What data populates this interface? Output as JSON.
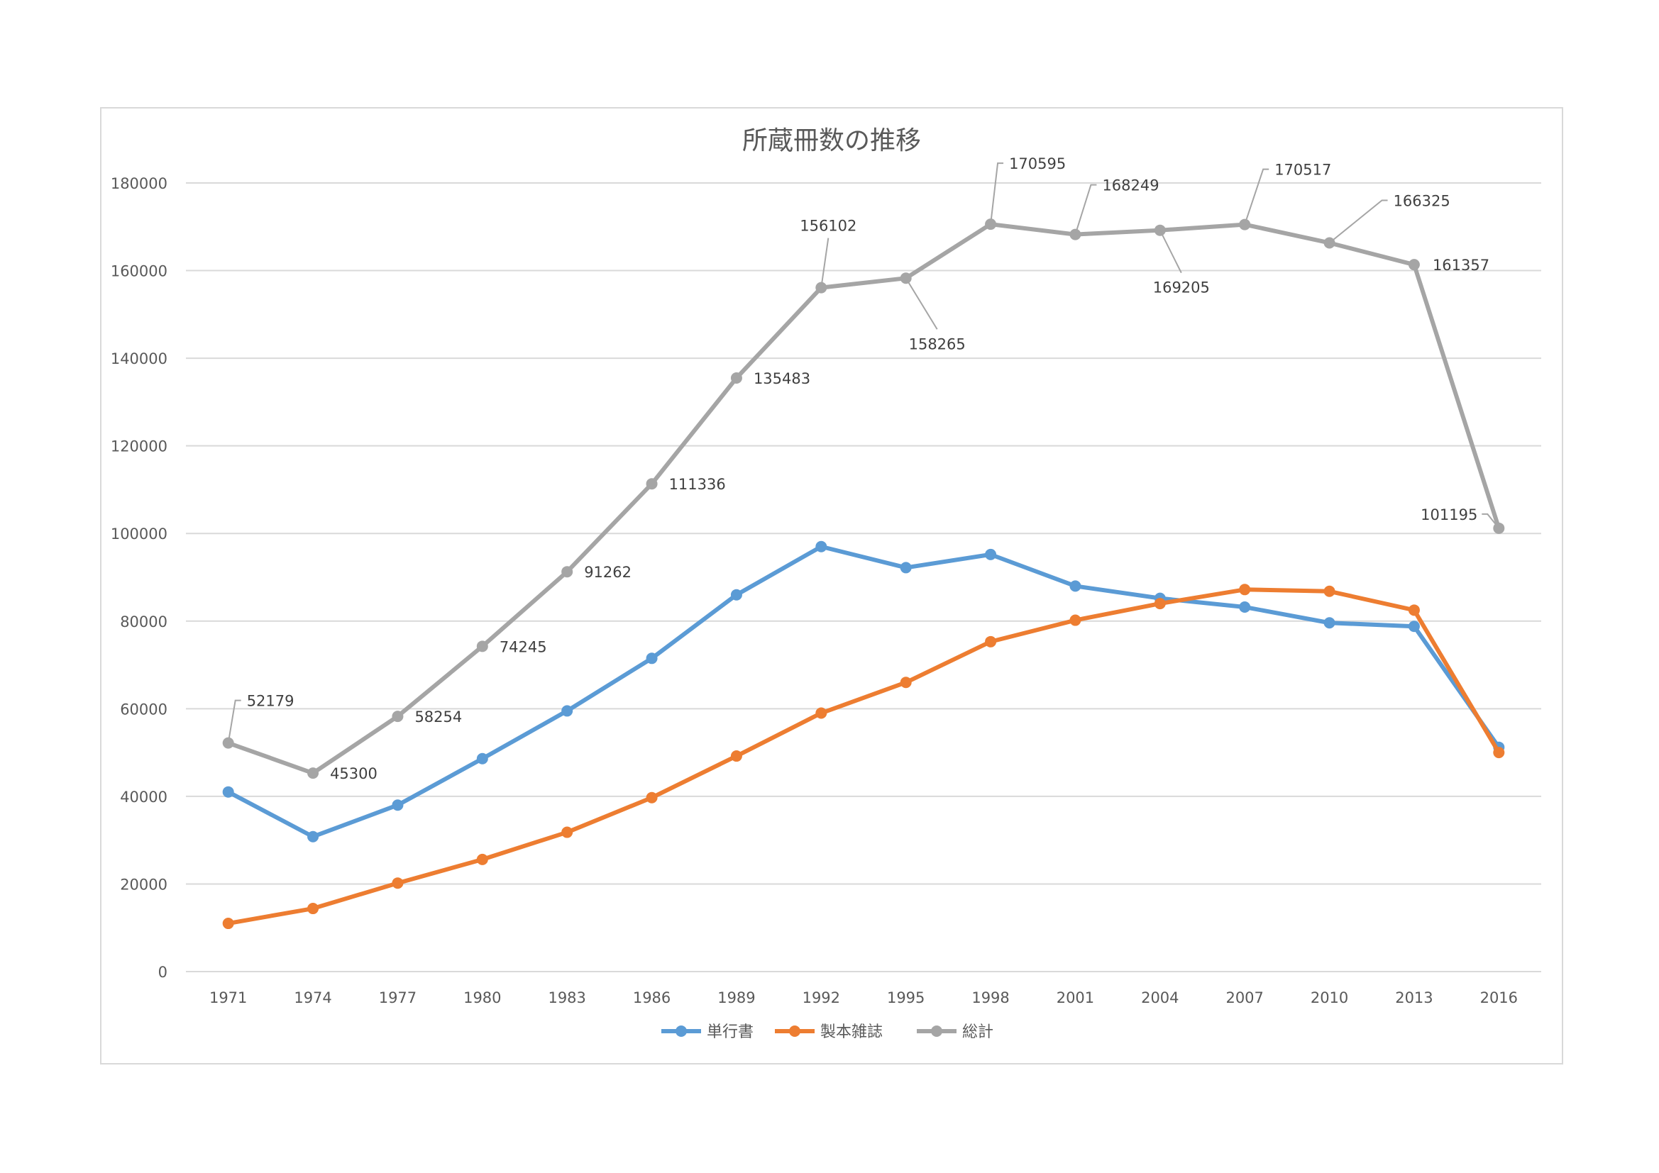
{
  "chart_data": {
    "type": "line",
    "title": "所蔵冊数の推移",
    "xlabel": "",
    "ylabel": "",
    "ylim": [
      0,
      180000
    ],
    "yticks": [
      0,
      20000,
      40000,
      60000,
      80000,
      100000,
      120000,
      140000,
      160000,
      180000
    ],
    "grid": true,
    "legend_position": "bottom",
    "categories": [
      "1971",
      "1974",
      "1977",
      "1980",
      "1983",
      "1986",
      "1989",
      "1992",
      "1995",
      "1998",
      "2001",
      "2004",
      "2007",
      "2010",
      "2013",
      "2016"
    ],
    "series": [
      {
        "name": "単行書",
        "color": "#5b9bd5",
        "values": [
          41000,
          30800,
          38000,
          48600,
          59500,
          71500,
          86000,
          97000,
          92200,
          95200,
          88000,
          85200,
          83200,
          79600,
          78800,
          51200
        ]
      },
      {
        "name": "製本雑誌",
        "color": "#ed7d31",
        "values": [
          11000,
          14400,
          20200,
          25600,
          31800,
          39700,
          49200,
          59000,
          66000,
          75300,
          80200,
          84000,
          87200,
          86800,
          82500,
          50000
        ]
      },
      {
        "name": "総計",
        "color": "#a5a5a5",
        "values": [
          52179,
          45300,
          58254,
          74245,
          91262,
          111336,
          135483,
          156102,
          158265,
          170595,
          168249,
          169205,
          170517,
          166325,
          161357,
          101195
        ],
        "data_labels": [
          "52179",
          "45300",
          "58254",
          "74245",
          "91262",
          "111336",
          "135483",
          "156102",
          "158265",
          "170595",
          "168249",
          "169205",
          "170517",
          "166325",
          "161357",
          "101195"
        ]
      }
    ]
  }
}
